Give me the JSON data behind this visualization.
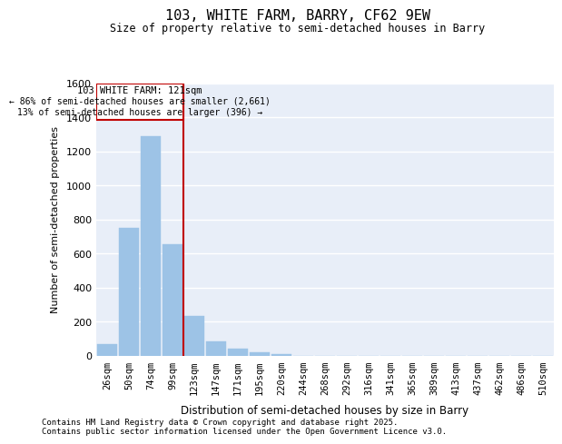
{
  "title": "103, WHITE FARM, BARRY, CF62 9EW",
  "subtitle": "Size of property relative to semi-detached houses in Barry",
  "xlabel": "Distribution of semi-detached houses by size in Barry",
  "ylabel": "Number of semi-detached properties",
  "categories": [
    "26sqm",
    "50sqm",
    "74sqm",
    "99sqm",
    "123sqm",
    "147sqm",
    "171sqm",
    "195sqm",
    "220sqm",
    "244sqm",
    "268sqm",
    "292sqm",
    "316sqm",
    "341sqm",
    "365sqm",
    "389sqm",
    "413sqm",
    "437sqm",
    "462sqm",
    "486sqm",
    "510sqm"
  ],
  "values": [
    65,
    750,
    1290,
    655,
    230,
    85,
    40,
    20,
    10,
    0,
    0,
    0,
    0,
    0,
    0,
    0,
    0,
    0,
    0,
    0,
    0
  ],
  "bar_color": "#9dc3e6",
  "annotation_box_edgecolor": "#c00000",
  "annotation_box_facecolor": "#ffffff",
  "property_line_color": "#c00000",
  "property_line_index": 4,
  "annotation_title": "103 WHITE FARM: 121sqm",
  "annotation_line1": "← 86% of semi-detached houses are smaller (2,661)",
  "annotation_line2": "13% of semi-detached houses are larger (396) →",
  "ylim": [
    0,
    1600
  ],
  "yticks": [
    0,
    200,
    400,
    600,
    800,
    1000,
    1200,
    1400,
    1600
  ],
  "footnote1": "Contains HM Land Registry data © Crown copyright and database right 2025.",
  "footnote2": "Contains public sector information licensed under the Open Government Licence v3.0.",
  "plot_facecolor": "#e8eef8",
  "fig_facecolor": "#ffffff",
  "grid_color": "#ffffff"
}
